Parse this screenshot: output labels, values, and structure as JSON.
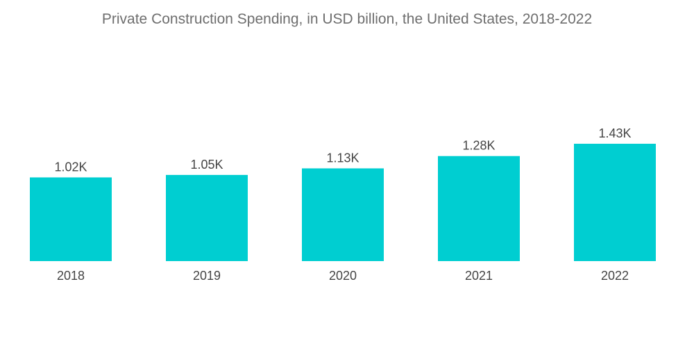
{
  "chart_data": {
    "type": "bar",
    "title": "Private Construction Spending, in USD billion, the United States, 2018-2022",
    "xlabel": "",
    "ylabel": "",
    "categories": [
      "2018",
      "2019",
      "2020",
      "2021",
      "2022"
    ],
    "values": [
      1020,
      1050,
      1130,
      1280,
      1430
    ],
    "data_labels": [
      "1.02K",
      "1.05K",
      "1.13K",
      "1.28K",
      "1.43K"
    ],
    "ylim": [
      0,
      1430
    ],
    "grid": false,
    "legend": "none",
    "bar_color": "#00ced1"
  }
}
